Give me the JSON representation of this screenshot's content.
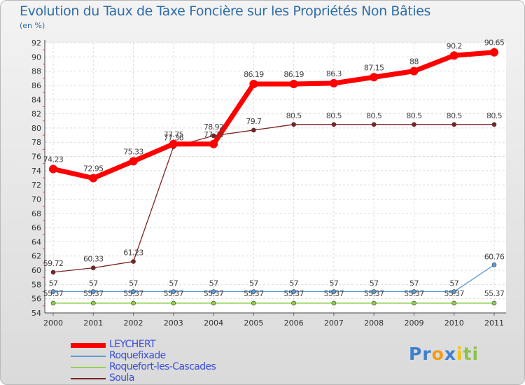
{
  "chart_data": {
    "type": "line",
    "title": "Evolution du Taux de Taxe Foncière sur les Propriétés Non Bâties",
    "ylabel": "(en %)",
    "xlabel": "",
    "categories": [
      "2000",
      "2001",
      "2002",
      "2003",
      "2004",
      "2005",
      "2006",
      "2007",
      "2008",
      "2009",
      "2010",
      "2011"
    ],
    "ylim": [
      54,
      92
    ],
    "yticks": [
      54,
      56,
      58,
      60,
      62,
      64,
      66,
      68,
      70,
      72,
      74,
      76,
      78,
      80,
      82,
      84,
      86,
      88,
      90,
      92
    ],
    "grid": true,
    "legend_position": "bottom-left",
    "series": [
      {
        "name": "LEYCHERT",
        "color": "#ff0000",
        "values": [
          74.23,
          72.95,
          75.33,
          77.75,
          77.75,
          86.19,
          86.19,
          86.3,
          87.15,
          88,
          90.2,
          90.65
        ],
        "labels": [
          "74.23",
          "72.95",
          "75.33",
          "77.75",
          "77.75",
          "86.19",
          "86.19",
          "86.3",
          "87.15",
          "88",
          "90.2",
          "90.65"
        ]
      },
      {
        "name": "Roquefixade",
        "color": "#5b9bd5",
        "values": [
          57,
          57,
          57,
          57,
          57,
          57,
          57,
          57,
          57,
          57,
          57,
          60.76
        ],
        "labels": [
          "57",
          "57",
          "57",
          "57",
          "57",
          "57",
          "57",
          "57",
          "57",
          "57",
          "57",
          "60.76"
        ]
      },
      {
        "name": "Roquefort-les-Cascades",
        "color": "#92d050",
        "values": [
          55.37,
          55.37,
          55.37,
          55.37,
          55.37,
          55.37,
          55.37,
          55.37,
          55.37,
          55.37,
          55.37,
          55.37
        ],
        "labels": [
          "55.37",
          "55.37",
          "55.37",
          "55.37",
          "55.37",
          "55.37",
          "55.37",
          "55.37",
          "55.37",
          "55.37",
          "55.37",
          "55.37"
        ]
      },
      {
        "name": "Soula",
        "color": "#7b2323",
        "values": [
          59.72,
          60.33,
          61.23,
          77.36,
          78.92,
          79.7,
          80.5,
          80.5,
          80.5,
          80.5,
          80.5,
          80.5
        ],
        "labels": [
          "59.72",
          "60.33",
          "61.23",
          "77.36",
          "78.92",
          "79.7",
          "80.5",
          "80.5",
          "80.5",
          "80.5",
          "80.5",
          "80.5"
        ]
      }
    ]
  },
  "logo": {
    "letters": [
      "P",
      "r",
      "o",
      "x",
      "i",
      "t",
      "i"
    ],
    "colors": [
      "#3f7fcf",
      "#3f7fcf",
      "#f39c12",
      "#3f7fcf",
      "#f1c40f",
      "#8bc34a",
      "#8bc34a"
    ]
  }
}
